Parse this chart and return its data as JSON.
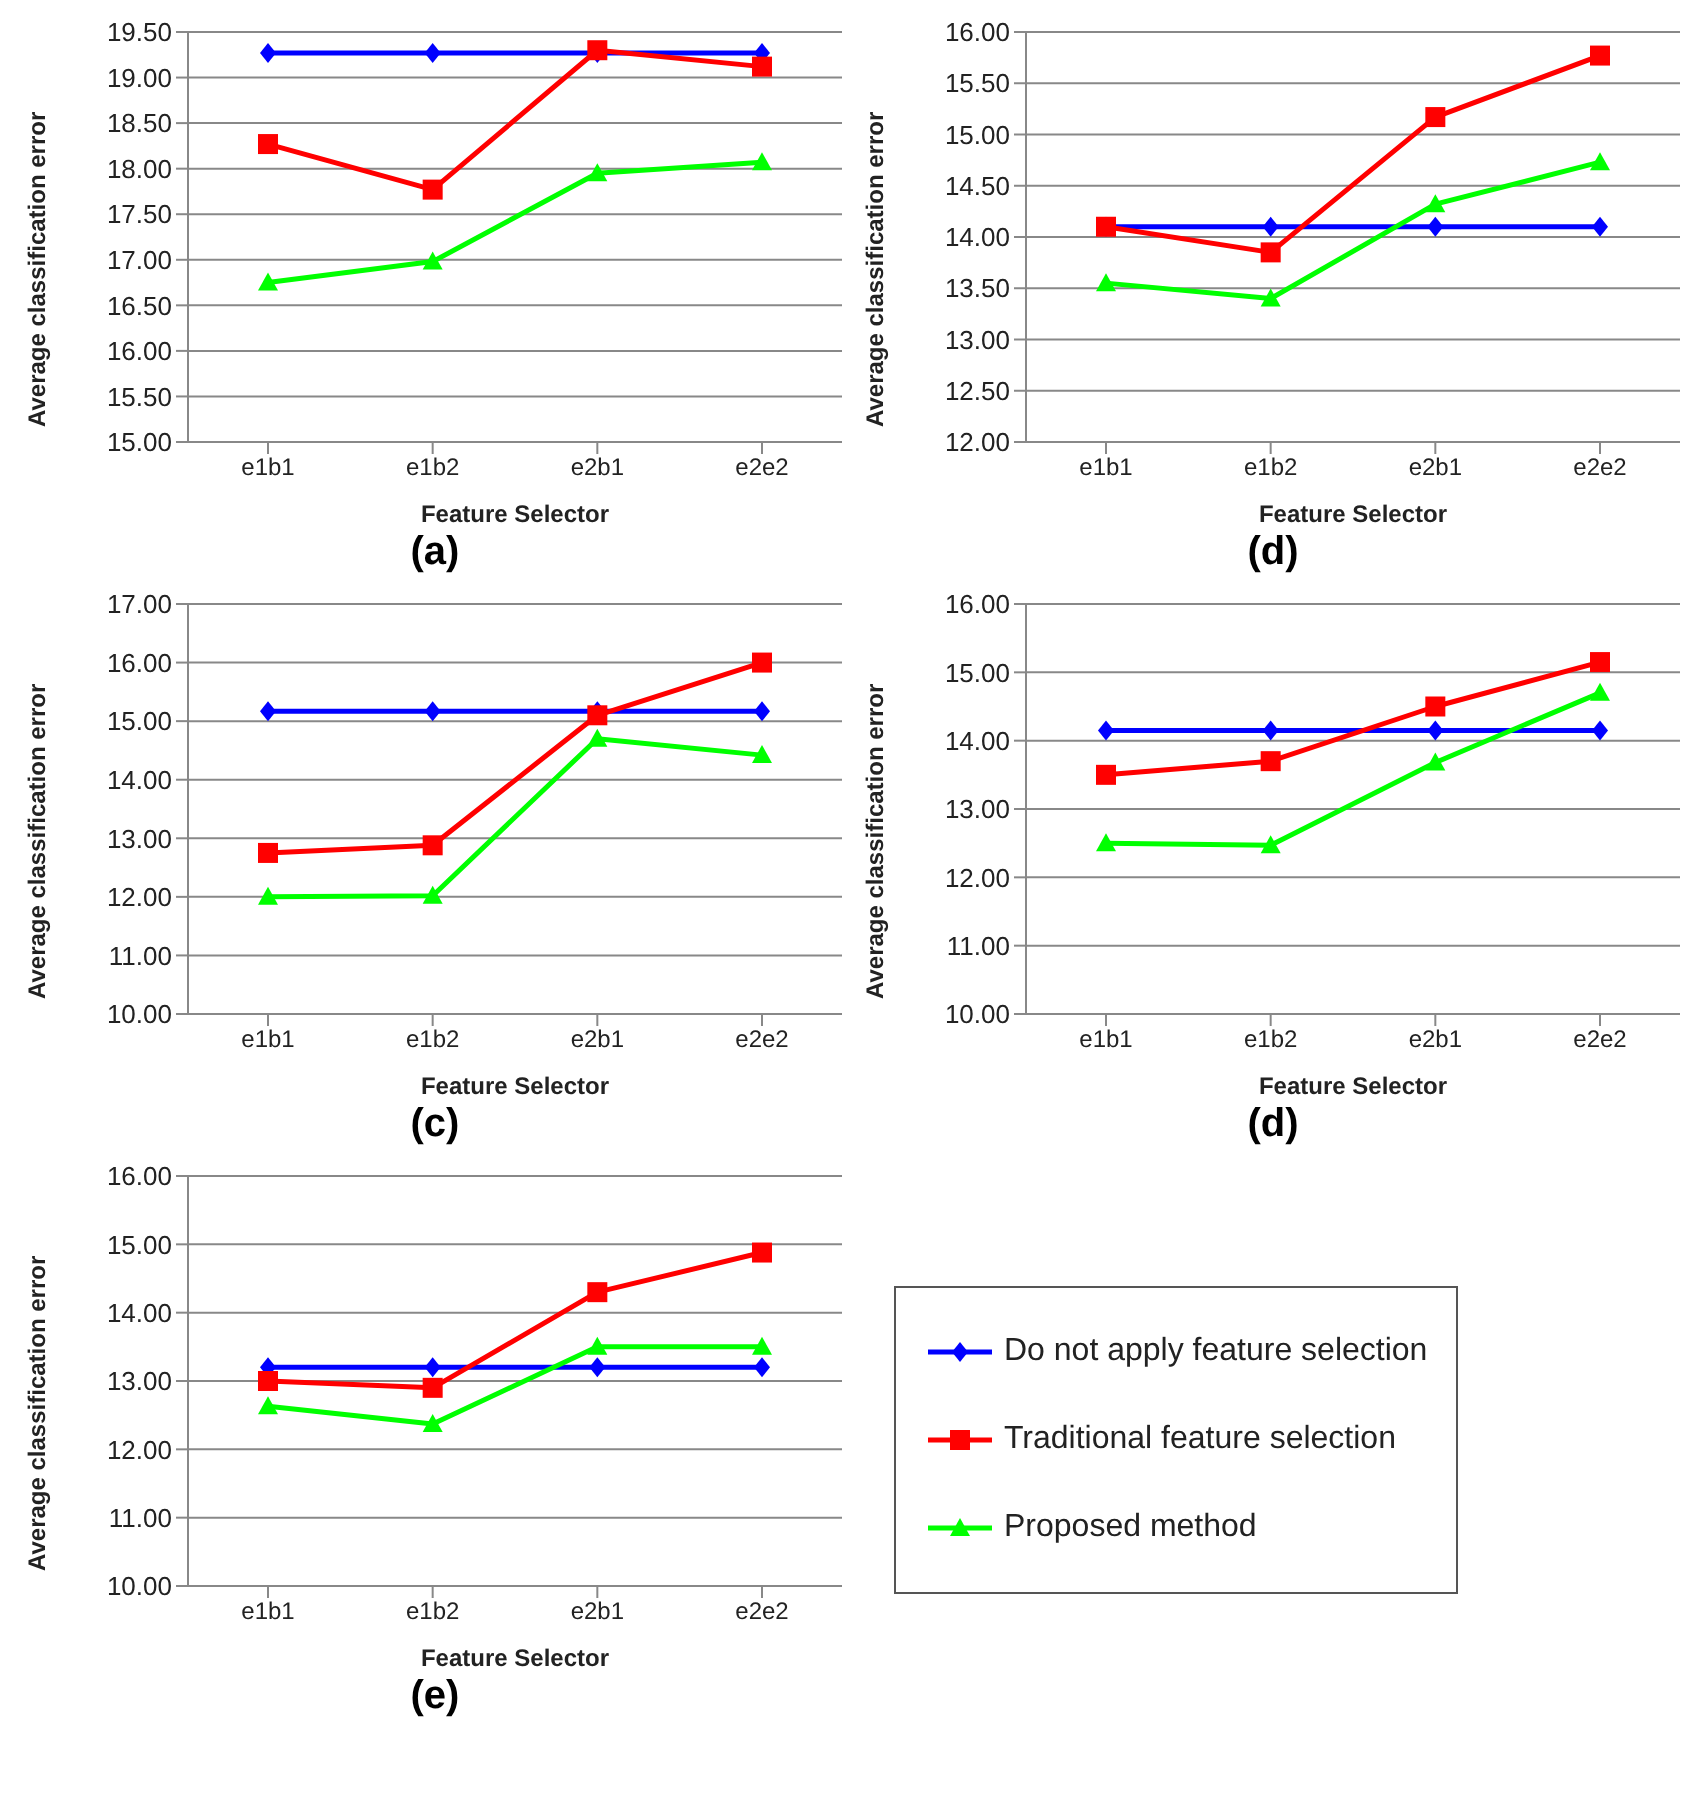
{
  "chart_data": [
    {
      "type": "line",
      "title": "(a)",
      "xlabel": "Feature Selector",
      "ylabel": "Average classification error",
      "categories": [
        "e1b1",
        "e1b2",
        "e2b1",
        "e2e2"
      ],
      "ylim": [
        15,
        19.5
      ],
      "yticks": [
        {
          "value": 15,
          "label": "15.00"
        },
        {
          "value": 15.5,
          "label": "15.50"
        },
        {
          "value": 16,
          "label": "16.00"
        },
        {
          "value": 16.5,
          "label": "16.50"
        },
        {
          "value": 17,
          "label": "17.00"
        },
        {
          "value": 17.5,
          "label": "17.50"
        },
        {
          "value": 18,
          "label": "18.00"
        },
        {
          "value": 18.5,
          "label": "18.50"
        },
        {
          "value": 19,
          "label": "19.00"
        },
        {
          "value": 19.5,
          "label": "19.50"
        }
      ],
      "grid": "y",
      "series": [
        {
          "color": "#0000ff",
          "marker": "diamond",
          "values": [
            19.27,
            19.27,
            19.27,
            19.27
          ]
        },
        {
          "color": "#ff0000",
          "marker": "square",
          "values": [
            18.27,
            17.77,
            19.3,
            19.12
          ]
        },
        {
          "color": "#00ff00",
          "marker": "triangle",
          "values": [
            16.75,
            16.98,
            17.95,
            18.07
          ]
        }
      ]
    },
    {
      "type": "line",
      "title": "(d)",
      "xlabel": "Feature Selector",
      "ylabel": "Average classification error",
      "categories": [
        "e1b1",
        "e1b2",
        "e2b1",
        "e2e2"
      ],
      "ylim": [
        12,
        16
      ],
      "yticks": [
        {
          "value": 12,
          "label": "12.00"
        },
        {
          "value": 12.5,
          "label": "12.50"
        },
        {
          "value": 13,
          "label": "13.00"
        },
        {
          "value": 13.5,
          "label": "13.50"
        },
        {
          "value": 14,
          "label": "14.00"
        },
        {
          "value": 14.5,
          "label": "14.50"
        },
        {
          "value": 15,
          "label": "15.00"
        },
        {
          "value": 15.5,
          "label": "15.50"
        },
        {
          "value": 16,
          "label": "16.00"
        }
      ],
      "grid": "y",
      "series": [
        {
          "color": "#0000ff",
          "marker": "diamond",
          "values": [
            14.1,
            14.1,
            14.1,
            14.1
          ]
        },
        {
          "color": "#ff0000",
          "marker": "square",
          "values": [
            14.1,
            13.85,
            15.17,
            15.77
          ]
        },
        {
          "color": "#00ff00",
          "marker": "triangle",
          "values": [
            13.55,
            13.4,
            14.32,
            14.73
          ]
        }
      ]
    },
    {
      "type": "line",
      "title": "(c)",
      "xlabel": "Feature Selector",
      "ylabel": "Average classification error",
      "categories": [
        "e1b1",
        "e1b2",
        "e2b1",
        "e2e2"
      ],
      "ylim": [
        10,
        17
      ],
      "yticks": [
        {
          "value": 10,
          "label": "10.00"
        },
        {
          "value": 11,
          "label": "11.00"
        },
        {
          "value": 12,
          "label": "12.00"
        },
        {
          "value": 13,
          "label": "13.00"
        },
        {
          "value": 14,
          "label": "14.00"
        },
        {
          "value": 15,
          "label": "15.00"
        },
        {
          "value": 16,
          "label": "16.00"
        },
        {
          "value": 17,
          "label": "17.00"
        }
      ],
      "grid": "y",
      "series": [
        {
          "color": "#0000ff",
          "marker": "diamond",
          "values": [
            15.17,
            15.17,
            15.17,
            15.17
          ]
        },
        {
          "color": "#ff0000",
          "marker": "square",
          "values": [
            12.75,
            12.88,
            15.1,
            16.0
          ]
        },
        {
          "color": "#00ff00",
          "marker": "triangle",
          "values": [
            12.0,
            12.02,
            14.7,
            14.42
          ]
        }
      ]
    },
    {
      "type": "line",
      "title": "(d)",
      "xlabel": "Feature Selector",
      "ylabel": "Average classification error",
      "categories": [
        "e1b1",
        "e1b2",
        "e2b1",
        "e2e2"
      ],
      "ylim": [
        10,
        16
      ],
      "yticks": [
        {
          "value": 10,
          "label": "10.00"
        },
        {
          "value": 11,
          "label": "11.00"
        },
        {
          "value": 12,
          "label": "12.00"
        },
        {
          "value": 13,
          "label": "13.00"
        },
        {
          "value": 14,
          "label": "14.00"
        },
        {
          "value": 15,
          "label": "15.00"
        },
        {
          "value": 16,
          "label": "16.00"
        }
      ],
      "grid": "y",
      "series": [
        {
          "color": "#0000ff",
          "marker": "diamond",
          "values": [
            14.15,
            14.15,
            14.15,
            14.15
          ]
        },
        {
          "color": "#ff0000",
          "marker": "square",
          "values": [
            13.5,
            13.7,
            14.5,
            15.15
          ]
        },
        {
          "color": "#00ff00",
          "marker": "triangle",
          "values": [
            12.5,
            12.47,
            13.68,
            14.7
          ]
        }
      ]
    },
    {
      "type": "line",
      "title": "(e)",
      "xlabel": "Feature Selector",
      "ylabel": "Average classification error",
      "categories": [
        "e1b1",
        "e1b2",
        "e2b1",
        "e2e2"
      ],
      "ylim": [
        10,
        16
      ],
      "yticks": [
        {
          "value": 10,
          "label": "10.00"
        },
        {
          "value": 11,
          "label": "11.00"
        },
        {
          "value": 12,
          "label": "12.00"
        },
        {
          "value": 13,
          "label": "13.00"
        },
        {
          "value": 14,
          "label": "14.00"
        },
        {
          "value": 15,
          "label": "15.00"
        },
        {
          "value": 16,
          "label": "16.00"
        }
      ],
      "grid": "y",
      "legend": "right",
      "series": [
        {
          "name": "Do not apply feature selection",
          "color": "#0000ff",
          "marker": "diamond",
          "values": [
            13.2,
            13.2,
            13.2,
            13.2
          ]
        },
        {
          "name": "Traditional feature selection",
          "color": "#ff0000",
          "marker": "square",
          "values": [
            13.0,
            12.9,
            14.3,
            14.88
          ]
        },
        {
          "name": "Proposed method",
          "color": "#00ff00",
          "marker": "triangle",
          "values": [
            12.63,
            12.37,
            13.5,
            13.5
          ]
        }
      ]
    }
  ]
}
